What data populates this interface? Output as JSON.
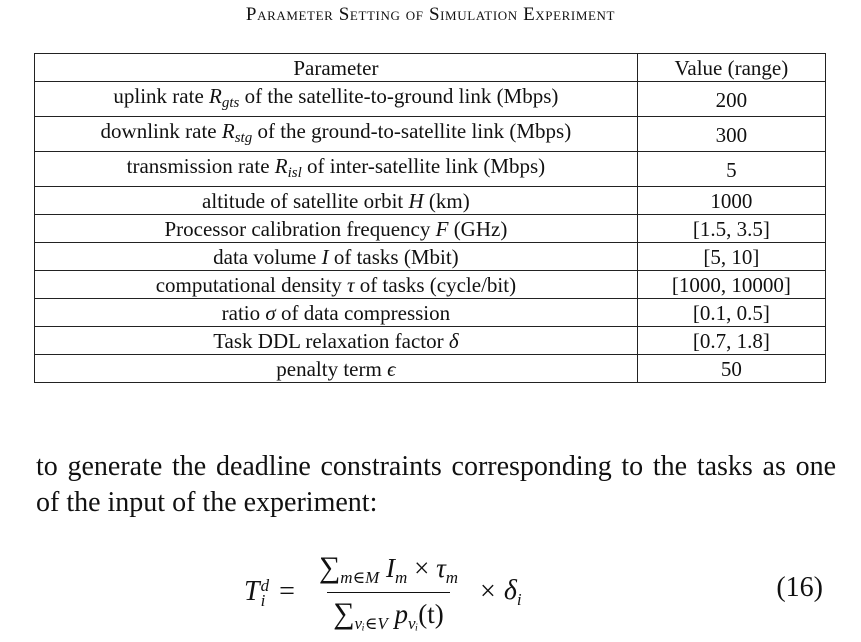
{
  "caption": "Parameter Setting of Simulation Experiment",
  "table": {
    "headers": [
      "Parameter",
      "Value (range)"
    ],
    "rows": [
      {
        "pre": "uplink rate ",
        "sym": "R",
        "sub": "gts",
        "post": " of the satellite-to-ground link (Mbps)",
        "value": "200"
      },
      {
        "pre": "downlink rate ",
        "sym": "R",
        "sub": "stg",
        "post": " of the ground-to-satellite link (Mbps)",
        "value": "300"
      },
      {
        "pre": "transmission rate ",
        "sym": "R",
        "sub": "isl",
        "post": " of inter-satellite link (Mbps)",
        "value": "5"
      },
      {
        "pre": "altitude of satellite orbit ",
        "sym": "H",
        "sub": "",
        "post": " (km)",
        "value": "1000"
      },
      {
        "pre": "Processor calibration frequency ",
        "sym": "F",
        "sub": "",
        "post": " (GHz)",
        "value": "[1.5, 3.5]"
      },
      {
        "pre": "data volume ",
        "sym": "I",
        "sub": "",
        "post": " of tasks (Mbit)",
        "value": "[5, 10]"
      },
      {
        "pre": "computational density ",
        "sym": "τ",
        "sub": "",
        "post": " of tasks (cycle/bit)",
        "value": "[1000, 10000]"
      },
      {
        "pre": "ratio ",
        "sym": "σ",
        "sub": "",
        "post": " of data compression",
        "value": "[0.1, 0.5]"
      },
      {
        "pre": "Task DDL relaxation factor ",
        "sym": "δ",
        "sub": "",
        "post": "",
        "value": "[0.7, 1.8]"
      },
      {
        "pre": "penalty term ",
        "sym": "ϵ",
        "sub": "",
        "post": "",
        "value": "50"
      }
    ]
  },
  "paragraph": "to generate the deadline constraints corresponding to the tasks as one of the input of the experiment:",
  "equation": {
    "lhs_symbol": "T",
    "lhs_sup": "d",
    "lhs_sub": "i",
    "equals": "=",
    "num_sigma": "∑",
    "num_range": "m∈M",
    "num_expr": "I",
    "num_expr_sub": "m",
    "num_times": "×",
    "num_expr2": "τ",
    "num_expr2_sub": "m",
    "den_sigma": "∑",
    "den_range": "vᵢ∈V",
    "den_expr": "p",
    "den_expr_sub": "vᵢ",
    "den_arg": "(t)",
    "times": "×",
    "rhs_symbol": "δ",
    "rhs_sub": "i",
    "number": "(16)"
  }
}
